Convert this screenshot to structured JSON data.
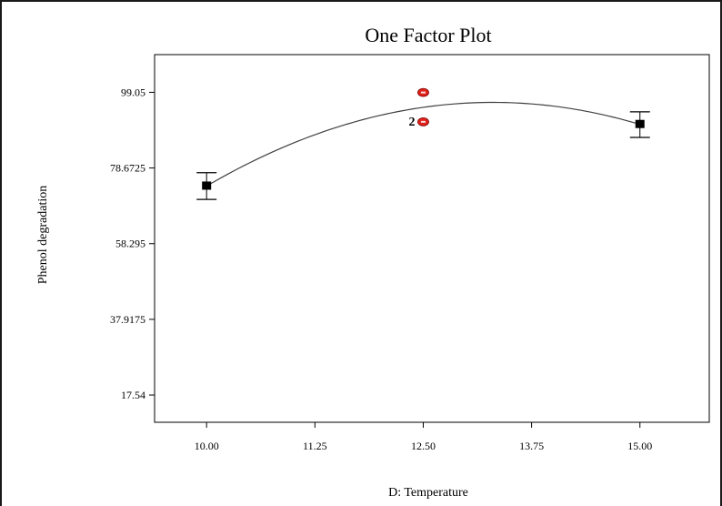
{
  "chart_data": {
    "type": "scatter",
    "title": "One Factor Plot",
    "xlabel": "D: Temperature",
    "ylabel": "Phenol degradation",
    "x_ticks": [
      "10.00",
      "11.25",
      "12.50",
      "13.75",
      "15.00"
    ],
    "y_ticks": [
      "17.54",
      "37.9175",
      "58.295",
      "78.6725",
      "99.05"
    ],
    "xlim": [
      9.4,
      15.8
    ],
    "ylim": [
      10.2,
      109.2
    ],
    "grid": false,
    "legend": "none",
    "fitted_curve": [
      {
        "x": 10.0,
        "y": 73.8
      },
      {
        "x": 12.5,
        "y": 95.0
      },
      {
        "x": 15.0,
        "y": 90.4
      }
    ],
    "means": [
      {
        "x": 10.0,
        "y": 73.8,
        "low": 70.2,
        "high": 77.4
      },
      {
        "x": 15.0,
        "y": 90.4,
        "low": 86.9,
        "high": 93.8
      }
    ],
    "design_points": [
      {
        "x": 12.5,
        "y": 99.0,
        "label": ""
      },
      {
        "x": 12.5,
        "y": 91.1,
        "label": "2"
      }
    ],
    "colors": {
      "design_point": "#e0211a",
      "mean": "#000000",
      "curve": "#404040",
      "axis": "#000000"
    }
  }
}
